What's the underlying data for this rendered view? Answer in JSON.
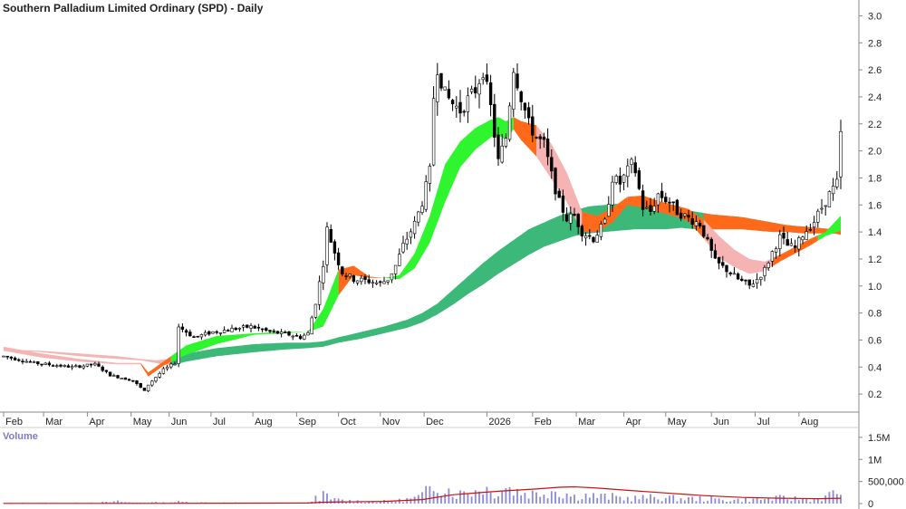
{
  "chart_data": {
    "type": "candlestick",
    "title": "Southern Palladium Limited Ordinary (SPD) - Daily",
    "volume_label": "Volume",
    "x_ticks": [
      "Feb",
      "Mar",
      "Apr",
      "May",
      "Jun",
      "Jul",
      "Aug",
      "Sep",
      "Oct",
      "Nov",
      "Dec",
      "2026",
      "Feb",
      "Mar",
      "Apr",
      "May",
      "Jun",
      "Jul",
      "Aug"
    ],
    "y_ticks": [
      "3.0",
      "2.8",
      "2.6",
      "2.4",
      "2.2",
      "2.0",
      "1.8",
      "1.6",
      "1.4",
      "1.2",
      "1.0",
      "0.8",
      "0.6",
      "0.4",
      "0.2"
    ],
    "y_range": [
      0.1,
      3.05
    ],
    "volume_ticks": [
      "1.5M",
      "1M",
      "500,000",
      "0"
    ],
    "volume_range": [
      0,
      1600000
    ],
    "price_path": [
      [
        0,
        0.48
      ],
      [
        8,
        0.43
      ],
      [
        18,
        0.4
      ],
      [
        24,
        0.42
      ],
      [
        28,
        0.34
      ],
      [
        34,
        0.3
      ],
      [
        37,
        0.22
      ],
      [
        38,
        0.27
      ],
      [
        42,
        0.38
      ],
      [
        45,
        0.43
      ],
      [
        46,
        0.7
      ],
      [
        50,
        0.62
      ],
      [
        55,
        0.66
      ],
      [
        60,
        0.68
      ],
      [
        65,
        0.7
      ],
      [
        70,
        0.66
      ],
      [
        75,
        0.64
      ],
      [
        78,
        0.62
      ],
      [
        80,
        0.65
      ],
      [
        82,
        0.88
      ],
      [
        84,
        1.17
      ],
      [
        85,
        1.42
      ],
      [
        87,
        1.25
      ],
      [
        89,
        1.1
      ],
      [
        92,
        1.05
      ],
      [
        95,
        1.04
      ],
      [
        99,
        1.02
      ],
      [
        101,
        1.05
      ],
      [
        103,
        1.15
      ],
      [
        105,
        1.3
      ],
      [
        108,
        1.46
      ],
      [
        110,
        1.62
      ],
      [
        112,
        1.85
      ],
      [
        113,
        2.4
      ],
      [
        114,
        2.62
      ],
      [
        116,
        2.42
      ],
      [
        118,
        2.35
      ],
      [
        120,
        2.3
      ],
      [
        122,
        2.38
      ],
      [
        124,
        2.45
      ],
      [
        126,
        2.6
      ],
      [
        128,
        2.32
      ],
      [
        130,
        1.92
      ],
      [
        132,
        2.1
      ],
      [
        134,
        2.62
      ],
      [
        136,
        2.4
      ],
      [
        138,
        2.2
      ],
      [
        140,
        2.1
      ],
      [
        142,
        2.05
      ],
      [
        144,
        1.82
      ],
      [
        146,
        1.62
      ],
      [
        148,
        1.5
      ],
      [
        150,
        1.52
      ],
      [
        152,
        1.4
      ],
      [
        155,
        1.35
      ],
      [
        158,
        1.47
      ],
      [
        160,
        1.8
      ],
      [
        162,
        1.76
      ],
      [
        165,
        1.9
      ],
      [
        166,
        1.85
      ],
      [
        168,
        1.58
      ],
      [
        170,
        1.55
      ],
      [
        172,
        1.68
      ],
      [
        175,
        1.62
      ],
      [
        177,
        1.55
      ],
      [
        180,
        1.5
      ],
      [
        183,
        1.46
      ],
      [
        185,
        1.32
      ],
      [
        187,
        1.18
      ],
      [
        190,
        1.12
      ],
      [
        193,
        1.05
      ],
      [
        196,
        1.0
      ],
      [
        198,
        1.05
      ],
      [
        200,
        1.12
      ],
      [
        202,
        1.25
      ],
      [
        204,
        1.36
      ],
      [
        206,
        1.3
      ],
      [
        208,
        1.28
      ],
      [
        210,
        1.38
      ],
      [
        213,
        1.48
      ],
      [
        215,
        1.58
      ],
      [
        217,
        1.68
      ],
      [
        219,
        1.76
      ],
      [
        220,
        2.12
      ]
    ],
    "series": [
      {
        "values": [
          [
            0,
            0.55,
            0.52
          ],
          [
            10,
            0.5,
            0.47
          ],
          [
            20,
            0.46,
            0.44
          ],
          [
            30,
            0.43,
            0.42
          ],
          [
            36,
            0.43,
            0.42
          ],
          [
            38,
            0.36,
            0.33
          ],
          [
            42,
            0.44,
            0.41
          ],
          [
            48,
            0.56,
            0.49
          ],
          [
            56,
            0.63,
            0.57
          ],
          [
            66,
            0.65,
            0.64
          ],
          [
            74,
            0.66,
            0.65
          ],
          [
            80,
            0.66,
            0.66
          ],
          [
            84,
            0.83,
            0.7
          ],
          [
            88,
            1.12,
            0.93
          ],
          [
            92,
            1.15,
            1.08
          ],
          [
            96,
            1.07,
            1.06
          ],
          [
            100,
            1.06,
            1.06
          ],
          [
            104,
            1.08,
            1.05
          ],
          [
            108,
            1.24,
            1.13
          ],
          [
            112,
            1.52,
            1.32
          ],
          [
            116,
            1.9,
            1.62
          ],
          [
            120,
            2.07,
            1.88
          ],
          [
            124,
            2.17,
            2.01
          ],
          [
            128,
            2.23,
            2.1
          ],
          [
            130,
            2.25,
            2.12
          ],
          [
            132,
            2.22,
            2.08
          ],
          [
            134,
            2.25,
            2.16
          ],
          [
            136,
            2.22,
            2.08
          ],
          [
            140,
            2.19,
            1.96
          ],
          [
            144,
            2.05,
            1.79
          ],
          [
            148,
            1.84,
            1.62
          ],
          [
            152,
            1.55,
            1.4
          ],
          [
            156,
            1.52,
            1.4
          ],
          [
            160,
            1.58,
            1.47
          ],
          [
            164,
            1.66,
            1.6
          ],
          [
            168,
            1.67,
            1.58
          ],
          [
            172,
            1.63,
            1.55
          ],
          [
            176,
            1.6,
            1.52
          ],
          [
            180,
            1.57,
            1.48
          ],
          [
            184,
            1.49,
            1.35
          ],
          [
            188,
            1.37,
            1.21
          ],
          [
            192,
            1.27,
            1.14
          ],
          [
            196,
            1.2,
            1.09
          ],
          [
            200,
            1.18,
            1.11
          ],
          [
            204,
            1.23,
            1.18
          ],
          [
            208,
            1.29,
            1.24
          ],
          [
            212,
            1.35,
            1.3
          ],
          [
            216,
            1.4,
            1.37
          ],
          [
            220,
            1.52,
            1.41
          ]
        ]
      },
      {
        "values": [
          [
            0,
            0.53,
            0.53
          ],
          [
            10,
            0.52,
            0.51
          ],
          [
            20,
            0.5,
            0.48
          ],
          [
            30,
            0.48,
            0.46
          ],
          [
            36,
            0.46,
            0.45
          ],
          [
            40,
            0.45,
            0.43
          ],
          [
            44,
            0.46,
            0.41
          ],
          [
            48,
            0.5,
            0.44
          ],
          [
            56,
            0.54,
            0.48
          ],
          [
            66,
            0.57,
            0.51
          ],
          [
            74,
            0.58,
            0.53
          ],
          [
            80,
            0.58,
            0.54
          ],
          [
            84,
            0.59,
            0.55
          ],
          [
            88,
            0.62,
            0.58
          ],
          [
            94,
            0.66,
            0.61
          ],
          [
            100,
            0.7,
            0.65
          ],
          [
            106,
            0.75,
            0.69
          ],
          [
            110,
            0.8,
            0.73
          ],
          [
            114,
            0.87,
            0.79
          ],
          [
            118,
            0.97,
            0.86
          ],
          [
            122,
            1.07,
            0.94
          ],
          [
            126,
            1.17,
            1.01
          ],
          [
            130,
            1.26,
            1.09
          ],
          [
            134,
            1.34,
            1.16
          ],
          [
            138,
            1.42,
            1.23
          ],
          [
            142,
            1.47,
            1.29
          ],
          [
            146,
            1.52,
            1.33
          ],
          [
            150,
            1.56,
            1.37
          ],
          [
            154,
            1.59,
            1.39
          ],
          [
            158,
            1.6,
            1.4
          ],
          [
            162,
            1.61,
            1.41
          ],
          [
            166,
            1.61,
            1.42
          ],
          [
            170,
            1.6,
            1.42
          ],
          [
            174,
            1.58,
            1.42
          ],
          [
            178,
            1.57,
            1.43
          ],
          [
            182,
            1.55,
            1.42
          ],
          [
            186,
            1.53,
            1.42
          ],
          [
            190,
            1.52,
            1.42
          ],
          [
            194,
            1.51,
            1.42
          ],
          [
            198,
            1.49,
            1.41
          ],
          [
            202,
            1.47,
            1.4
          ],
          [
            206,
            1.45,
            1.4
          ],
          [
            210,
            1.44,
            1.39
          ],
          [
            214,
            1.43,
            1.39
          ],
          [
            218,
            1.42,
            1.39
          ],
          [
            220,
            1.41,
            1.38
          ]
        ]
      }
    ],
    "colors": {
      "up_band": "#2ef52e",
      "down_band": "#ff6a1a",
      "falling_band": "#f5b3b3",
      "long_band": "#3cb878",
      "long_band_below": "#ff6a1a",
      "candle": "#000000",
      "volume_bar": "#8a8ad6",
      "volume_avg": "#cc1111"
    },
    "volume_path": [
      [
        0,
        10
      ],
      [
        10,
        12
      ],
      [
        20,
        11
      ],
      [
        28,
        30
      ],
      [
        30,
        45
      ],
      [
        34,
        18
      ],
      [
        38,
        25
      ],
      [
        42,
        20
      ],
      [
        46,
        40
      ],
      [
        50,
        25
      ],
      [
        56,
        20
      ],
      [
        64,
        15
      ],
      [
        70,
        12
      ],
      [
        76,
        14
      ],
      [
        80,
        20
      ],
      [
        82,
        140
      ],
      [
        84,
        190
      ],
      [
        86,
        100
      ],
      [
        88,
        80
      ],
      [
        92,
        60
      ],
      [
        96,
        45
      ],
      [
        100,
        50
      ],
      [
        104,
        70
      ],
      [
        108,
        120
      ],
      [
        110,
        180
      ],
      [
        112,
        320
      ],
      [
        114,
        520
      ],
      [
        116,
        380
      ],
      [
        118,
        260
      ],
      [
        120,
        220
      ],
      [
        122,
        300
      ],
      [
        124,
        280
      ],
      [
        126,
        420
      ],
      [
        128,
        240
      ],
      [
        130,
        300
      ],
      [
        132,
        380
      ],
      [
        134,
        300
      ],
      [
        136,
        260
      ],
      [
        140,
        220
      ],
      [
        144,
        320
      ],
      [
        148,
        220
      ],
      [
        150,
        160
      ],
      [
        152,
        200
      ],
      [
        156,
        160
      ],
      [
        160,
        150
      ],
      [
        164,
        120
      ],
      [
        168,
        130
      ],
      [
        172,
        140
      ],
      [
        176,
        120
      ],
      [
        180,
        110
      ],
      [
        184,
        110
      ],
      [
        188,
        90
      ],
      [
        192,
        80
      ],
      [
        196,
        90
      ],
      [
        200,
        100
      ],
      [
        204,
        120
      ],
      [
        208,
        110
      ],
      [
        212,
        100
      ],
      [
        216,
        140
      ],
      [
        220,
        300
      ]
    ],
    "volume_avg": [
      [
        0,
        5
      ],
      [
        40,
        5
      ],
      [
        60,
        8
      ],
      [
        80,
        12
      ],
      [
        84,
        30
      ],
      [
        100,
        50
      ],
      [
        110,
        90
      ],
      [
        118,
        200
      ],
      [
        130,
        280
      ],
      [
        140,
        330
      ],
      [
        146,
        370
      ],
      [
        150,
        380
      ],
      [
        156,
        350
      ],
      [
        164,
        300
      ],
      [
        174,
        240
      ],
      [
        184,
        180
      ],
      [
        194,
        140
      ],
      [
        204,
        120
      ],
      [
        214,
        110
      ],
      [
        220,
        120
      ]
    ]
  }
}
